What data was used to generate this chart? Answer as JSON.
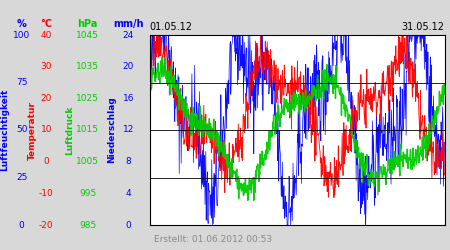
{
  "title_left": "01.05.12",
  "title_right": "31.05.12",
  "footer": "Erstellt: 01.06.2012 00:53",
  "plot_bgcolor": "#ffffff",
  "bg_color": "#d8d8d8",
  "n_points": 744,
  "blue_base": 60,
  "blue_amp": 35,
  "red_base": 15,
  "red_amp": 15,
  "green_base": 1015,
  "green_amp": 15
}
